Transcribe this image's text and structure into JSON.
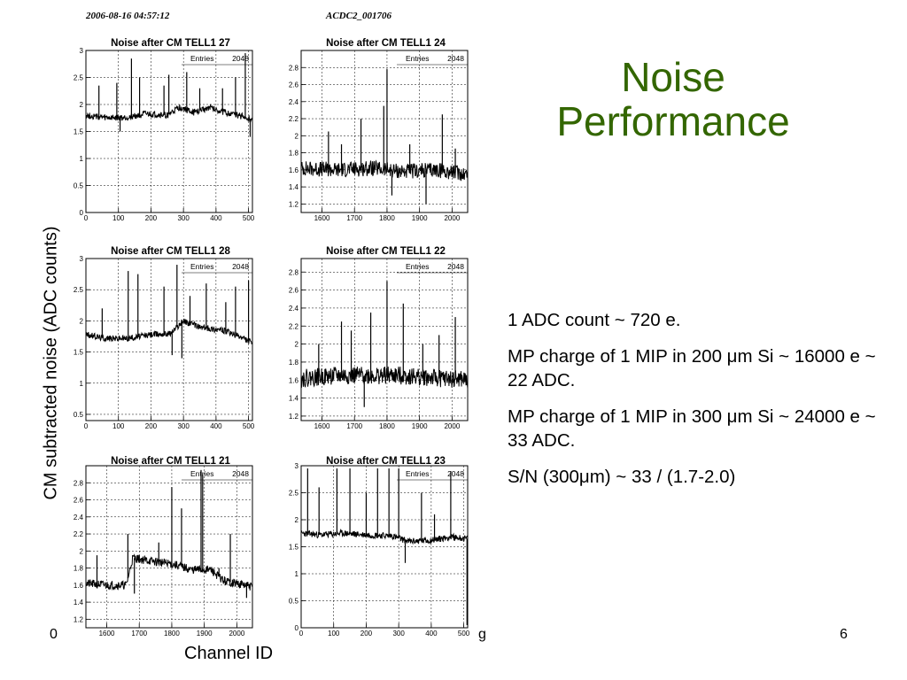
{
  "header": {
    "timestamp": "2006-08-16 04:57:12",
    "run_name": "ACDC2_001706"
  },
  "slide": {
    "title_line1": "Noise",
    "title_line2": "Performance",
    "title_color": "#336600",
    "y_axis_label": "CM subtracted noise (ADC counts)",
    "x_axis_label": "Channel ID",
    "bullets": [
      "1 ADC count ~ 720 e.",
      "MP charge of 1 MIP in 200 μm Si ~ 16000 e ~ 22 ADC.",
      "MP charge of 1 MIP in 300 μm Si ~ 24000 e ~ 33 ADC.",
      "S/N (300μm) ~ 33 / (1.7-2.0)"
    ],
    "footer_left": "0",
    "footer_mid": "g",
    "page_number": "6"
  },
  "chart_data": [
    {
      "type": "line",
      "title": "Noise after CM TELL1 27",
      "entries_label": "Entries",
      "entries_value": "2048",
      "x_ticks": [
        0,
        100,
        200,
        300,
        400,
        500
      ],
      "y_ticks": [
        0,
        0.5,
        1,
        1.5,
        2,
        2.5,
        3
      ],
      "xlim": [
        0,
        512
      ],
      "ylim": [
        0,
        3
      ],
      "grid": true,
      "baseline": [
        [
          0,
          1.8
        ],
        [
          60,
          1.75
        ],
        [
          120,
          1.75
        ],
        [
          180,
          1.82
        ],
        [
          250,
          1.8
        ],
        [
          290,
          1.95
        ],
        [
          330,
          1.85
        ],
        [
          380,
          1.95
        ],
        [
          430,
          1.85
        ],
        [
          480,
          1.78
        ],
        [
          512,
          1.7
        ]
      ],
      "noise_amp": 0.06,
      "spikes": [
        [
          40,
          2.35
        ],
        [
          95,
          2.4
        ],
        [
          140,
          2.85
        ],
        [
          165,
          2.5
        ],
        [
          240,
          2.35
        ],
        [
          255,
          2.55
        ],
        [
          310,
          2.6
        ],
        [
          350,
          2.3
        ],
        [
          420,
          2.3
        ],
        [
          460,
          2.5
        ],
        [
          490,
          2.95
        ],
        [
          505,
          1.4
        ],
        [
          105,
          1.5
        ]
      ],
      "seed": 27
    },
    {
      "type": "line",
      "title": "Noise after CM TELL1 24",
      "entries_label": "Entries",
      "entries_value": "2048",
      "x_ticks": [
        1600,
        1700,
        1800,
        1900,
        2000
      ],
      "y_ticks": [
        1.2,
        1.4,
        1.6,
        1.8,
        2,
        2.2,
        2.4,
        2.6,
        2.8
      ],
      "xlim": [
        1536,
        2048
      ],
      "ylim": [
        1.1,
        3.0
      ],
      "grid": true,
      "baseline": [
        [
          1536,
          1.62
        ],
        [
          1650,
          1.6
        ],
        [
          1750,
          1.62
        ],
        [
          1850,
          1.58
        ],
        [
          1950,
          1.6
        ],
        [
          2048,
          1.55
        ]
      ],
      "noise_amp": 0.09,
      "spikes": [
        [
          1620,
          2.05
        ],
        [
          1660,
          1.9
        ],
        [
          1720,
          2.2
        ],
        [
          1790,
          2.35
        ],
        [
          1800,
          2.78
        ],
        [
          1815,
          1.3
        ],
        [
          1870,
          1.9
        ],
        [
          1920,
          1.2
        ],
        [
          1970,
          2.25
        ],
        [
          2010,
          1.85
        ]
      ],
      "seed": 24
    },
    {
      "type": "line",
      "title": "Noise after CM TELL1 28",
      "entries_label": "Entries",
      "entries_value": "2048",
      "x_ticks": [
        0,
        100,
        200,
        300,
        400,
        500
      ],
      "y_ticks": [
        0.5,
        1,
        1.5,
        2,
        2.5,
        3
      ],
      "xlim": [
        0,
        512
      ],
      "ylim": [
        0.4,
        3
      ],
      "grid": true,
      "baseline": [
        [
          0,
          1.78
        ],
        [
          60,
          1.72
        ],
        [
          130,
          1.72
        ],
        [
          200,
          1.78
        ],
        [
          260,
          1.8
        ],
        [
          300,
          2.0
        ],
        [
          350,
          1.9
        ],
        [
          420,
          1.85
        ],
        [
          470,
          1.75
        ],
        [
          512,
          1.65
        ]
      ],
      "noise_amp": 0.05,
      "spikes": [
        [
          50,
          2.2
        ],
        [
          130,
          2.8
        ],
        [
          160,
          2.75
        ],
        [
          240,
          2.55
        ],
        [
          265,
          1.45
        ],
        [
          280,
          2.9
        ],
        [
          295,
          1.4
        ],
        [
          320,
          2.4
        ],
        [
          370,
          2.6
        ],
        [
          430,
          2.3
        ],
        [
          460,
          2.55
        ],
        [
          500,
          2.65
        ]
      ],
      "seed": 28
    },
    {
      "type": "line",
      "title": "Noise after CM TELL1 22",
      "entries_label": "Entries",
      "entries_value": "2048",
      "x_ticks": [
        1600,
        1700,
        1800,
        1900,
        2000
      ],
      "y_ticks": [
        1.2,
        1.4,
        1.6,
        1.8,
        2,
        2.2,
        2.4,
        2.6,
        2.8
      ],
      "xlim": [
        1536,
        2048
      ],
      "ylim": [
        1.15,
        2.95
      ],
      "grid": true,
      "baseline": [
        [
          1536,
          1.62
        ],
        [
          1650,
          1.65
        ],
        [
          1750,
          1.65
        ],
        [
          1850,
          1.65
        ],
        [
          1950,
          1.62
        ],
        [
          2048,
          1.6
        ]
      ],
      "noise_amp": 0.1,
      "spikes": [
        [
          1590,
          2.0
        ],
        [
          1660,
          2.25
        ],
        [
          1690,
          2.15
        ],
        [
          1730,
          1.3
        ],
        [
          1750,
          2.35
        ],
        [
          1800,
          2.7
        ],
        [
          1850,
          2.45
        ],
        [
          1910,
          2.0
        ],
        [
          1960,
          2.1
        ],
        [
          2010,
          2.3
        ]
      ],
      "seed": 22
    },
    {
      "type": "line",
      "title": "Noise after CM TELL1 21",
      "entries_label": "Entries",
      "entries_value": "2048",
      "x_ticks": [
        1600,
        1700,
        1800,
        1900,
        2000
      ],
      "y_ticks": [
        1.2,
        1.4,
        1.6,
        1.8,
        2,
        2.2,
        2.4,
        2.6,
        2.8
      ],
      "xlim": [
        1536,
        2048
      ],
      "ylim": [
        1.1,
        3.0
      ],
      "grid": true,
      "baseline": [
        [
          1536,
          1.62
        ],
        [
          1600,
          1.6
        ],
        [
          1660,
          1.6
        ],
        [
          1680,
          1.92
        ],
        [
          1740,
          1.88
        ],
        [
          1800,
          1.85
        ],
        [
          1860,
          1.78
        ],
        [
          1920,
          1.78
        ],
        [
          1960,
          1.65
        ],
        [
          2048,
          1.58
        ]
      ],
      "noise_amp": 0.05,
      "spikes": [
        [
          1570,
          1.95
        ],
        [
          1665,
          2.2
        ],
        [
          1685,
          1.5
        ],
        [
          1700,
          1.95
        ],
        [
          1760,
          2.1
        ],
        [
          1800,
          2.75
        ],
        [
          1830,
          2.5
        ],
        [
          1890,
          2.95
        ],
        [
          1895,
          2.9
        ],
        [
          1945,
          1.8
        ],
        [
          1980,
          2.2
        ],
        [
          2030,
          1.45
        ]
      ],
      "seed": 21
    },
    {
      "type": "line",
      "title": "Noise after CM TELL1 23",
      "entries_label": "Entries",
      "entries_value": "2048",
      "x_ticks": [
        0,
        100,
        200,
        300,
        400,
        500
      ],
      "y_ticks": [
        0,
        0.5,
        1,
        1.5,
        2,
        2.5,
        3
      ],
      "xlim": [
        0,
        512
      ],
      "ylim": [
        0,
        3.0
      ],
      "grid": true,
      "baseline": [
        [
          0,
          1.75
        ],
        [
          60,
          1.72
        ],
        [
          130,
          1.75
        ],
        [
          200,
          1.72
        ],
        [
          280,
          1.7
        ],
        [
          330,
          1.6
        ],
        [
          400,
          1.62
        ],
        [
          460,
          1.68
        ],
        [
          512,
          1.65
        ]
      ],
      "noise_amp": 0.06,
      "spikes": [
        [
          20,
          2.95
        ],
        [
          55,
          2.6
        ],
        [
          110,
          2.95
        ],
        [
          150,
          2.95
        ],
        [
          200,
          2.5
        ],
        [
          235,
          2.95
        ],
        [
          270,
          2.95
        ],
        [
          300,
          2.95
        ],
        [
          320,
          1.2
        ],
        [
          370,
          2.5
        ],
        [
          410,
          2.1
        ],
        [
          460,
          2.9
        ],
        [
          510,
          0.05
        ]
      ],
      "seed": 23
    }
  ]
}
